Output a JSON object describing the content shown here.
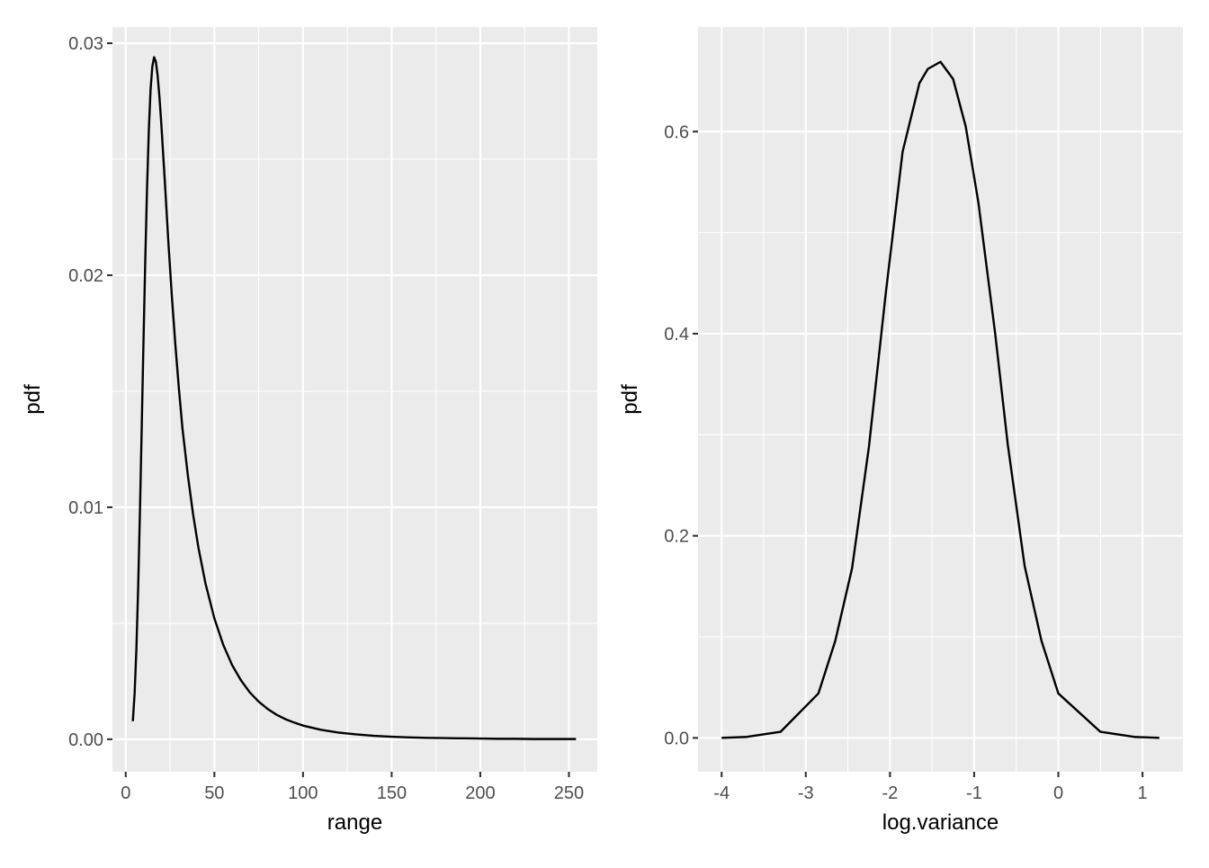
{
  "colors": {
    "panel_background": "#ebebeb",
    "grid": "#ffffff",
    "line": "#000000",
    "tick_text": "#4d4d4d"
  },
  "chart_data": [
    {
      "type": "line",
      "xlabel": "range",
      "ylabel": "pdf",
      "xlim": [
        -7.5,
        266
      ],
      "ylim": [
        -0.0014,
        0.0307
      ],
      "x_ticks": [
        0,
        50,
        100,
        150,
        200,
        250
      ],
      "x_tick_labels": [
        "0",
        "50",
        "100",
        "150",
        "200",
        "250"
      ],
      "x_minor_ticks": [
        25,
        75,
        125,
        175,
        225
      ],
      "y_ticks": [
        0,
        0.01,
        0.02,
        0.03
      ],
      "y_tick_labels": [
        "0.00",
        "0.01",
        "0.02",
        "0.03"
      ],
      "y_minor_ticks": [
        0.005,
        0.015,
        0.025
      ],
      "grid": true,
      "series": [
        {
          "x": [
            4,
            5,
            6,
            7,
            8,
            9,
            10,
            11,
            12,
            13,
            14,
            15,
            16,
            17,
            18,
            19,
            20,
            22,
            24,
            26,
            28,
            30,
            32,
            35,
            38,
            41,
            45,
            50,
            55,
            60,
            65,
            70,
            75,
            80,
            85,
            90,
            95,
            100,
            110,
            120,
            130,
            140,
            150,
            160,
            170,
            180,
            190,
            200,
            210,
            220,
            230,
            240,
            254
          ],
          "y": [
            0.00078,
            0.00196,
            0.00387,
            0.00652,
            0.00977,
            0.0134,
            0.0171,
            0.0206,
            0.0237,
            0.0262,
            0.028,
            0.029,
            0.0294,
            0.0292,
            0.0286,
            0.0277,
            0.0266,
            0.0241,
            0.0215,
            0.0191,
            0.017,
            0.0151,
            0.0134,
            0.0114,
            0.00969,
            0.00826,
            0.00671,
            0.00521,
            0.00407,
            0.0032,
            0.00254,
            0.00202,
            0.00162,
            0.00131,
            0.00106,
            0.00087,
            0.00072,
            0.00059,
            0.00041,
            0.00029,
            0.00021,
            0.00015,
            0.00011,
            8e-05,
            6e-05,
            5e-05,
            4e-05,
            3e-05,
            2e-05,
            2e-05,
            1e-05,
            1e-05,
            1e-05
          ]
        }
      ]
    },
    {
      "type": "line",
      "xlabel": "log.variance",
      "ylabel": "pdf",
      "xlim": [
        -4.28,
        1.48
      ],
      "ylim": [
        -0.0335,
        0.7035
      ],
      "x_ticks": [
        -4,
        -3,
        -2,
        -1,
        0,
        1
      ],
      "x_tick_labels": [
        "-4",
        "-3",
        "-2",
        "-1",
        "0",
        "1"
      ],
      "x_minor_ticks": [
        -3.5,
        -2.5,
        -1.5,
        -0.5,
        0.5
      ],
      "y_ticks": [
        0,
        0.2,
        0.4,
        0.6
      ],
      "y_tick_labels": [
        "0.0",
        "0.2",
        "0.4",
        "0.6"
      ],
      "y_minor_ticks": [
        0.1,
        0.3,
        0.5
      ],
      "grid": true,
      "series": [
        {
          "x": [
            -4.0,
            -3.7,
            -3.3,
            -2.85,
            -2.65,
            -2.45,
            -2.25,
            -2.05,
            -1.85,
            -1.65,
            -1.55,
            -1.4,
            -1.25,
            -1.1,
            -0.95,
            -0.75,
            -0.6,
            -0.4,
            -0.2,
            0.0,
            0.5,
            0.9,
            1.2
          ],
          "y": [
            0.0,
            0.001,
            0.006,
            0.044,
            0.096,
            0.168,
            0.288,
            0.44,
            0.58,
            0.648,
            0.662,
            0.669,
            0.652,
            0.605,
            0.53,
            0.4,
            0.29,
            0.17,
            0.096,
            0.044,
            0.006,
            0.001,
            0.0
          ]
        }
      ]
    }
  ]
}
